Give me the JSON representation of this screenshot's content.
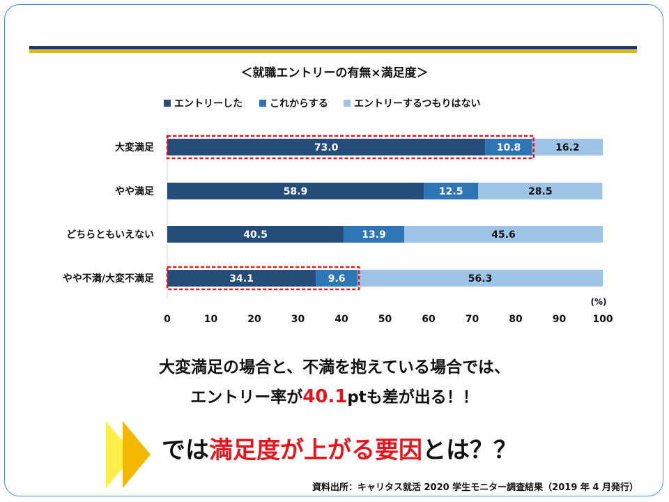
{
  "slide": {
    "message_line1": "大変満足の場合と、不満を抱えている場合では、",
    "message_line2_pre": "エントリー率が",
    "message_line2_highlight": "40.1",
    "message_line2_post": "ptも差が出る！！",
    "question_pre": "では",
    "question_highlight": "満足度が上がる要因",
    "question_post": "とは？？",
    "source": "資料出所：キャリタス就活 2020 学生モニター調査結果（2019 年 4 月発行）"
  },
  "colors": {
    "entry_done": "#244d7a",
    "entry_planned": "#2e75b6",
    "no_entry": "#9dc3e6",
    "highlight_red": "#e8141b",
    "rule_navy": "#1f3864",
    "rule_gold": "#e0b800"
  },
  "chart_data": {
    "type": "bar",
    "orientation": "horizontal",
    "stacked": true,
    "title": "＜就職エントリーの有無×満足度＞",
    "categories": [
      "大変満足",
      "やや満足",
      "どちらともいえない",
      "やや不満/大変不満足"
    ],
    "series": [
      {
        "name": "エントリーした",
        "values": [
          73.0,
          58.9,
          40.5,
          34.1
        ]
      },
      {
        "name": "これからする",
        "values": [
          10.8,
          12.5,
          13.9,
          9.6
        ]
      },
      {
        "name": "エントリーするつもりはない",
        "values": [
          16.2,
          28.5,
          45.6,
          56.3
        ]
      }
    ],
    "xlim": [
      0,
      100
    ],
    "xticks": [
      0,
      10,
      20,
      30,
      40,
      50,
      60,
      70,
      80,
      90,
      100
    ],
    "unit_label": "(%)",
    "legend_position": "top",
    "highlighted_categories": [
      "大変満足",
      "やや不満/大変不満足"
    ],
    "highlighted_series_count": 2
  }
}
